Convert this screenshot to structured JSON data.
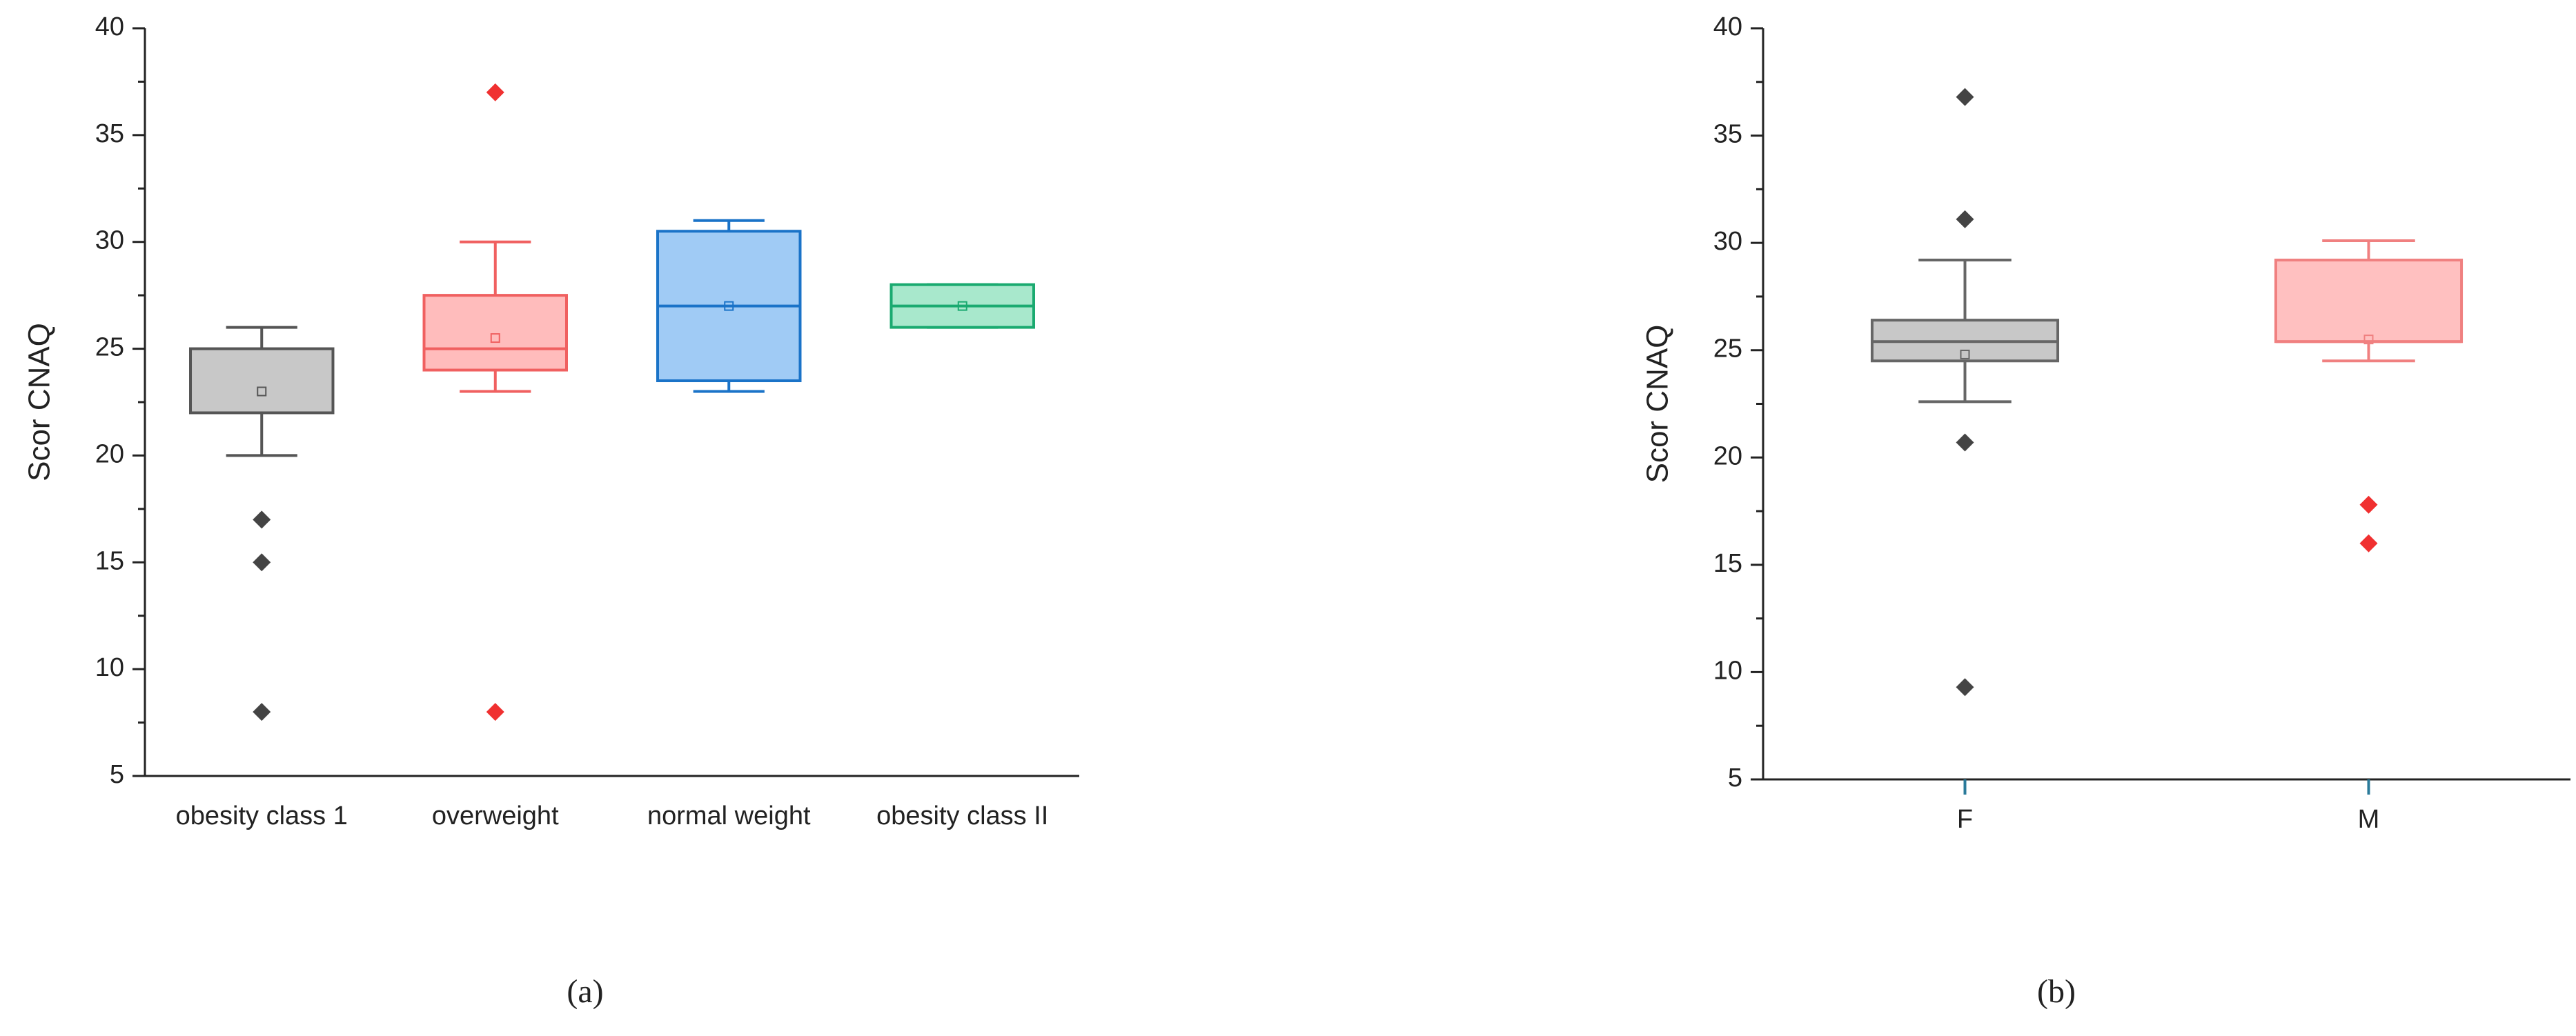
{
  "chart_data": [
    {
      "type": "box",
      "caption": "(a)",
      "y_label": "Scor CNAQ",
      "categories": [
        "obesity class 1",
        "overweight",
        "normal weight",
        "obesity class II"
      ],
      "boxes": [
        {
          "stroke": "#555555",
          "fill": "#c8c8c8",
          "outlier_color": "#444444",
          "whisker_low": 20,
          "q1": 22,
          "median": 22,
          "q3": 25,
          "whisker_high": 26,
          "mean": 23,
          "outliers": [
            17,
            15,
            8
          ]
        },
        {
          "stroke": "#f06060",
          "fill": "#ffbcbc",
          "outlier_color": "#f03030",
          "whisker_low": 23,
          "q1": 24,
          "median": 25,
          "q3": 27.5,
          "whisker_high": 30,
          "mean": 25.5,
          "outliers": [
            37,
            8
          ]
        },
        {
          "stroke": "#1a73c8",
          "fill": "#a0cbf5",
          "outlier_color": "#1a73c8",
          "whisker_low": 23,
          "q1": 23.5,
          "median": 27,
          "q3": 30.5,
          "whisker_high": 31,
          "mean": 27,
          "outliers": []
        },
        {
          "stroke": "#1aaa70",
          "fill": "#a8e8cc",
          "outlier_color": "#1aaa70",
          "whisker_low": 26,
          "q1": 26,
          "median": 27,
          "q3": 28,
          "whisker_high": 28,
          "mean": 27,
          "outliers": []
        }
      ],
      "ylim": [
        5,
        40
      ],
      "yticks": [
        5,
        10,
        15,
        20,
        25,
        30,
        35,
        40
      ],
      "minor_yticks": [
        7.5,
        12.5,
        17.5,
        22.5,
        27.5,
        32.5,
        37.5
      ]
    },
    {
      "type": "box",
      "caption": "(b)",
      "y_label": "Scor CNAQ",
      "categories": [
        "F",
        "M"
      ],
      "boxes": [
        {
          "stroke": "#666666",
          "fill": "#c8c8c8",
          "outlier_color": "#444444",
          "whisker_low": 22.6,
          "q1": 24.5,
          "median": 25.4,
          "q3": 26.4,
          "whisker_high": 29.2,
          "mean": 24.8,
          "outliers": [
            36.8,
            31.1,
            20.7,
            9.3
          ]
        },
        {
          "stroke": "#f08080",
          "fill": "#ffc0c0",
          "outlier_color": "#f03030",
          "whisker_low": 24.5,
          "q1": 25.4,
          "median": 25.4,
          "q3": 29.2,
          "whisker_high": 30.1,
          "mean": 25.5,
          "outliers": [
            17.8,
            16
          ]
        }
      ],
      "ylim": [
        5,
        40
      ],
      "yticks": [
        5,
        10,
        15,
        20,
        25,
        30,
        35,
        40
      ],
      "minor_yticks": [
        7.5,
        12.5,
        17.5,
        22.5,
        27.5,
        32.5,
        37.5
      ]
    }
  ]
}
